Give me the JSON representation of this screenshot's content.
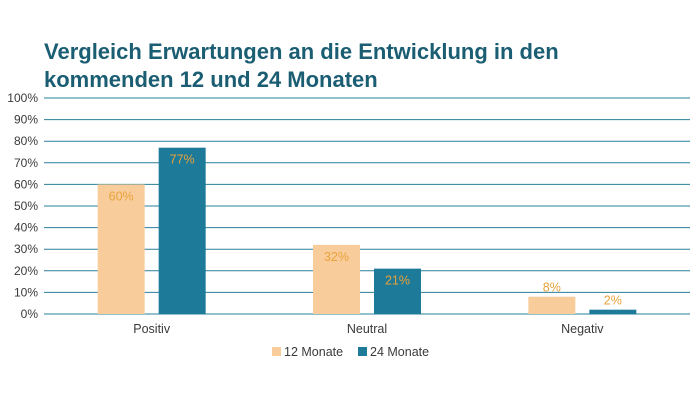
{
  "chart_data": {
    "type": "bar",
    "title_lines": [
      "Vergleich Erwartungen an die Entwicklung in den",
      "kommenden 12 und 24 Monaten"
    ],
    "categories": [
      "Positiv",
      "Neutral",
      "Negativ"
    ],
    "series": [
      {
        "name": "12 Monate",
        "values": [
          60,
          32,
          8
        ],
        "labels": [
          "60%",
          "32%",
          "8%"
        ],
        "color": "#f9cd9b"
      },
      {
        "name": "24 Monate",
        "values": [
          77,
          21,
          2
        ],
        "labels": [
          "77%",
          "21%",
          "2%"
        ],
        "color": "#1d7a99"
      }
    ],
    "ylim": [
      0,
      100
    ],
    "yticks": [
      "0%",
      "10%",
      "20%",
      "30%",
      "40%",
      "50%",
      "60%",
      "70%",
      "80%",
      "90%",
      "100%"
    ],
    "grid": true,
    "legend": "bottom",
    "label_color": "#e8a23b",
    "title_color": "#1b5e73",
    "grid_color": "#2a7f9a"
  }
}
